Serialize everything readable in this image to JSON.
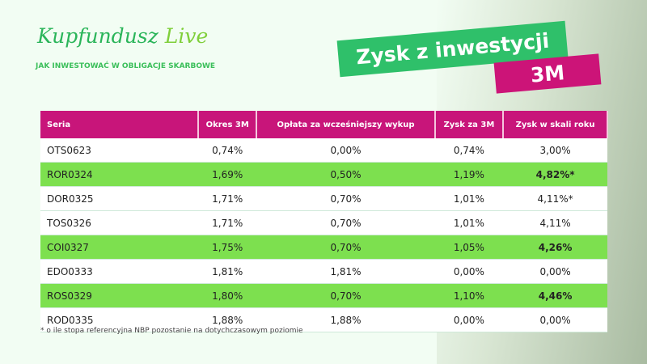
{
  "brand": {
    "name": "Kupfundusz",
    "name2": "Live",
    "tagline": "JAK INWESTOWAĆ W OBLIGACJE SKARBOWE"
  },
  "title": {
    "line1": "Zysk z inwestycji",
    "line2": "3M"
  },
  "colors": {
    "header": "#c8157a",
    "highlight": "#7de04f",
    "title_green": "#2fc06a"
  },
  "table": {
    "headers": [
      "Seria",
      "Okres 3M",
      "Opłata za wcześniejszy wykup",
      "Zysk za 3M",
      "Zysk w skali roku"
    ],
    "rows": [
      {
        "cells": [
          "OTS0623",
          "0,74%",
          "0,00%",
          "0,74%",
          "3,00%"
        ],
        "highlight": false
      },
      {
        "cells": [
          "ROR0324",
          "1,69%",
          "0,50%",
          "1,19%",
          "4,82%*"
        ],
        "highlight": true
      },
      {
        "cells": [
          "DOR0325",
          "1,71%",
          "0,70%",
          "1,01%",
          "4,11%*"
        ],
        "highlight": false
      },
      {
        "cells": [
          "TOS0326",
          "1,71%",
          "0,70%",
          "1,01%",
          "4,11%"
        ],
        "highlight": false
      },
      {
        "cells": [
          "COI0327",
          "1,75%",
          "0,70%",
          "1,05%",
          "4,26%"
        ],
        "highlight": true
      },
      {
        "cells": [
          "EDO0333",
          "1,81%",
          "1,81%",
          "0,00%",
          "0,00%"
        ],
        "highlight": false
      },
      {
        "cells": [
          "ROS0329",
          "1,80%",
          "0,70%",
          "1,10%",
          "4,46%"
        ],
        "highlight": true
      },
      {
        "cells": [
          "ROD0335",
          "1,88%",
          "1,88%",
          "0,00%",
          "0,00%"
        ],
        "highlight": false
      }
    ]
  },
  "footnote": "* o ile stopa referencyjna NBP pozostanie na dotychczasowym poziomie"
}
